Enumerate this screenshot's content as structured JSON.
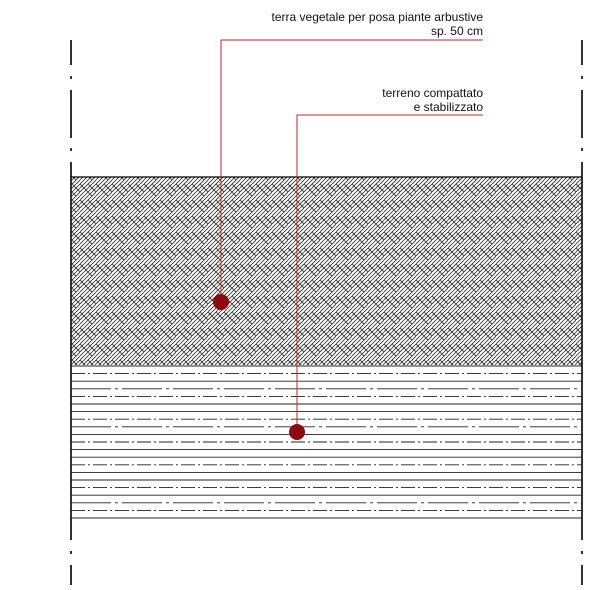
{
  "annotations": [
    {
      "id": "topsoil",
      "lines": [
        "terra vegetale per posa piante arbustive",
        "sp. 50 cm"
      ]
    },
    {
      "id": "compacted",
      "lines": [
        "terreno compattato",
        "e stabilizzato"
      ]
    }
  ],
  "colors": {
    "leader": "#c0272d",
    "marker_fill": "#8b0a10",
    "ink": "#000000",
    "hatch": "#222222"
  }
}
